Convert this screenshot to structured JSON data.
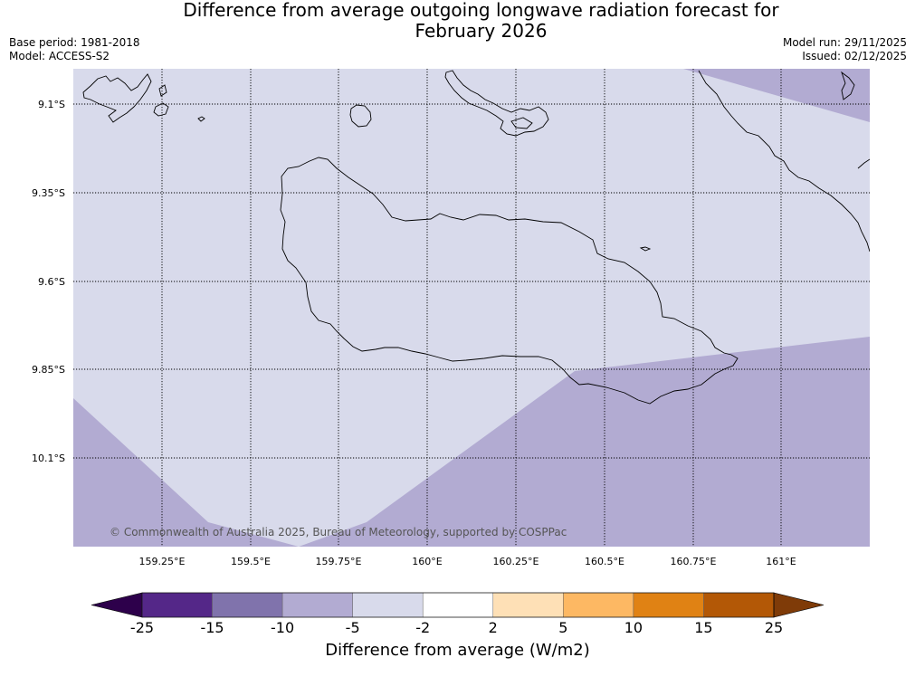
{
  "title_line1": "Difference from average outgoing longwave radiation forecast for",
  "title_line2": "February 2026",
  "base_period": "Base period: 1981-2018",
  "model": "Model: ACCESS-S2",
  "model_run": "Model run: 29/11/2025",
  "issued": "Issued: 02/12/2025",
  "copyright": "© Commonwealth of Australia 2025, Bureau of Meteorology, supported by COSPPac",
  "lat_labels": [
    "9.1°S",
    "9.35°S",
    "9.6°S",
    "9.85°S",
    "10.1°S"
  ],
  "lon_labels": [
    "159.25°E",
    "159.5°E",
    "159.75°E",
    "160°E",
    "160.25°E",
    "160.5°E",
    "160.75°E",
    "161°E"
  ],
  "colorbar": {
    "title": "Difference from average (W/m2)",
    "ticks": [
      "-25",
      "-15",
      "-10",
      "-5",
      "-2",
      "2",
      "5",
      "10",
      "15",
      "25"
    ],
    "colors": [
      "#2d004b",
      "#542788",
      "#8073ac",
      "#b2abd2",
      "#d8daeb",
      "#ffffff",
      "#fee0b6",
      "#fdb863",
      "#e08214",
      "#b35806",
      "#7f3b08"
    ]
  }
}
